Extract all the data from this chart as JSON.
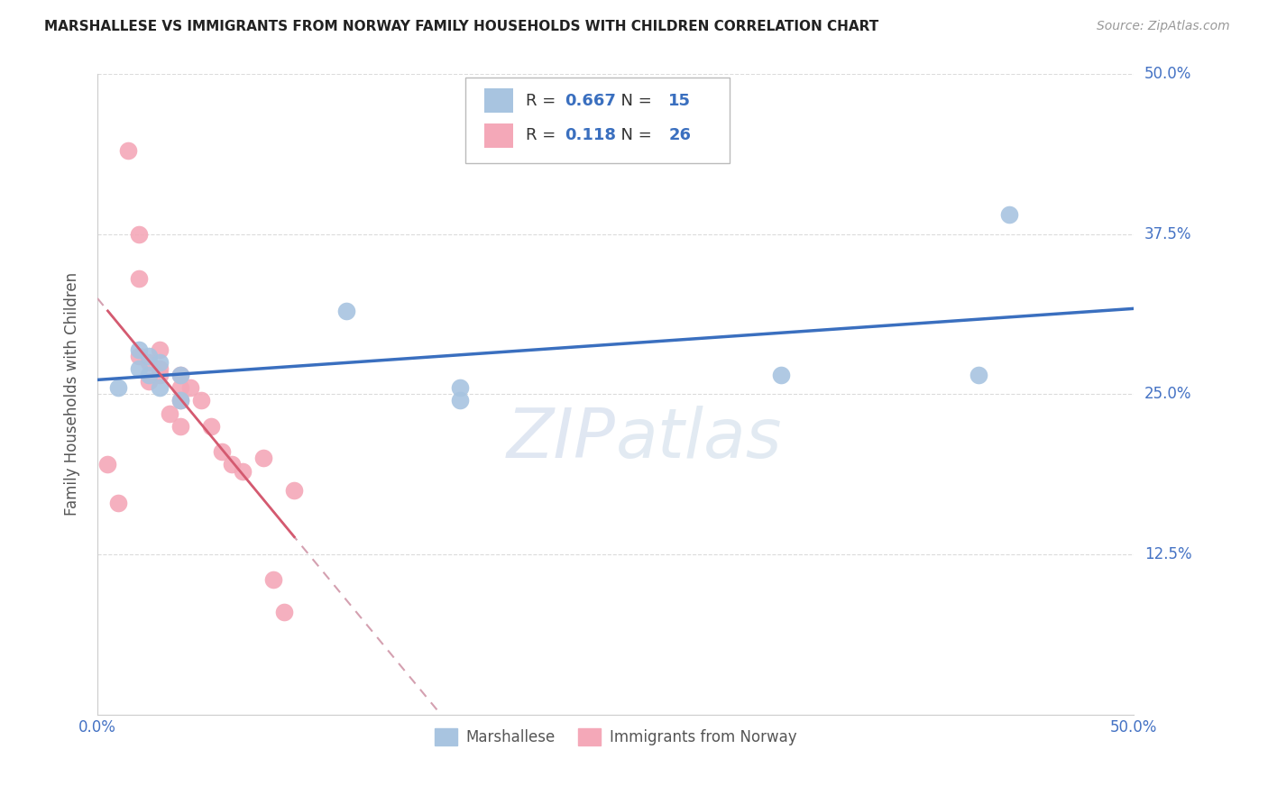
{
  "title": "MARSHALLESE VS IMMIGRANTS FROM NORWAY FAMILY HOUSEHOLDS WITH CHILDREN CORRELATION CHART",
  "source": "Source: ZipAtlas.com",
  "ylabel": "Family Households with Children",
  "xlim": [
    0.0,
    0.5
  ],
  "ylim": [
    0.0,
    0.5
  ],
  "xtick_vals": [
    0.0,
    0.5
  ],
  "xtick_labels": [
    "0.0%",
    "50.0%"
  ],
  "ytick_vals": [
    0.125,
    0.25,
    0.375,
    0.5
  ],
  "ytick_labels": [
    "12.5%",
    "25.0%",
    "37.5%",
    "50.0%"
  ],
  "marshallese_R": 0.667,
  "marshallese_N": 15,
  "norway_R": 0.118,
  "norway_N": 26,
  "marshallese_color": "#a8c4e0",
  "norway_color": "#f4a8b8",
  "trend_blue": "#3a6fbf",
  "trend_pink": "#d45a70",
  "trend_dashed_color": "#d4a0b0",
  "marshallese_x": [
    0.01,
    0.02,
    0.02,
    0.025,
    0.025,
    0.03,
    0.03,
    0.04,
    0.04,
    0.12,
    0.175,
    0.175,
    0.33,
    0.44,
    0.425
  ],
  "marshallese_y": [
    0.255,
    0.27,
    0.285,
    0.265,
    0.28,
    0.255,
    0.275,
    0.265,
    0.245,
    0.315,
    0.255,
    0.245,
    0.265,
    0.39,
    0.265
  ],
  "norway_x": [
    0.005,
    0.01,
    0.015,
    0.02,
    0.02,
    0.02,
    0.025,
    0.025,
    0.03,
    0.03,
    0.03,
    0.035,
    0.04,
    0.04,
    0.04,
    0.04,
    0.045,
    0.05,
    0.055,
    0.06,
    0.065,
    0.07,
    0.08,
    0.085,
    0.09,
    0.095
  ],
  "norway_y": [
    0.195,
    0.165,
    0.44,
    0.375,
    0.34,
    0.28,
    0.275,
    0.26,
    0.285,
    0.27,
    0.265,
    0.235,
    0.265,
    0.255,
    0.245,
    0.225,
    0.255,
    0.245,
    0.225,
    0.205,
    0.195,
    0.19,
    0.2,
    0.105,
    0.08,
    0.175
  ],
  "background_color": "#ffffff",
  "grid_color": "#cccccc",
  "watermark_zip": "ZIP",
  "watermark_atlas": "atlas",
  "legend_label_1": "Marshallese",
  "legend_label_2": "Immigrants from Norway"
}
